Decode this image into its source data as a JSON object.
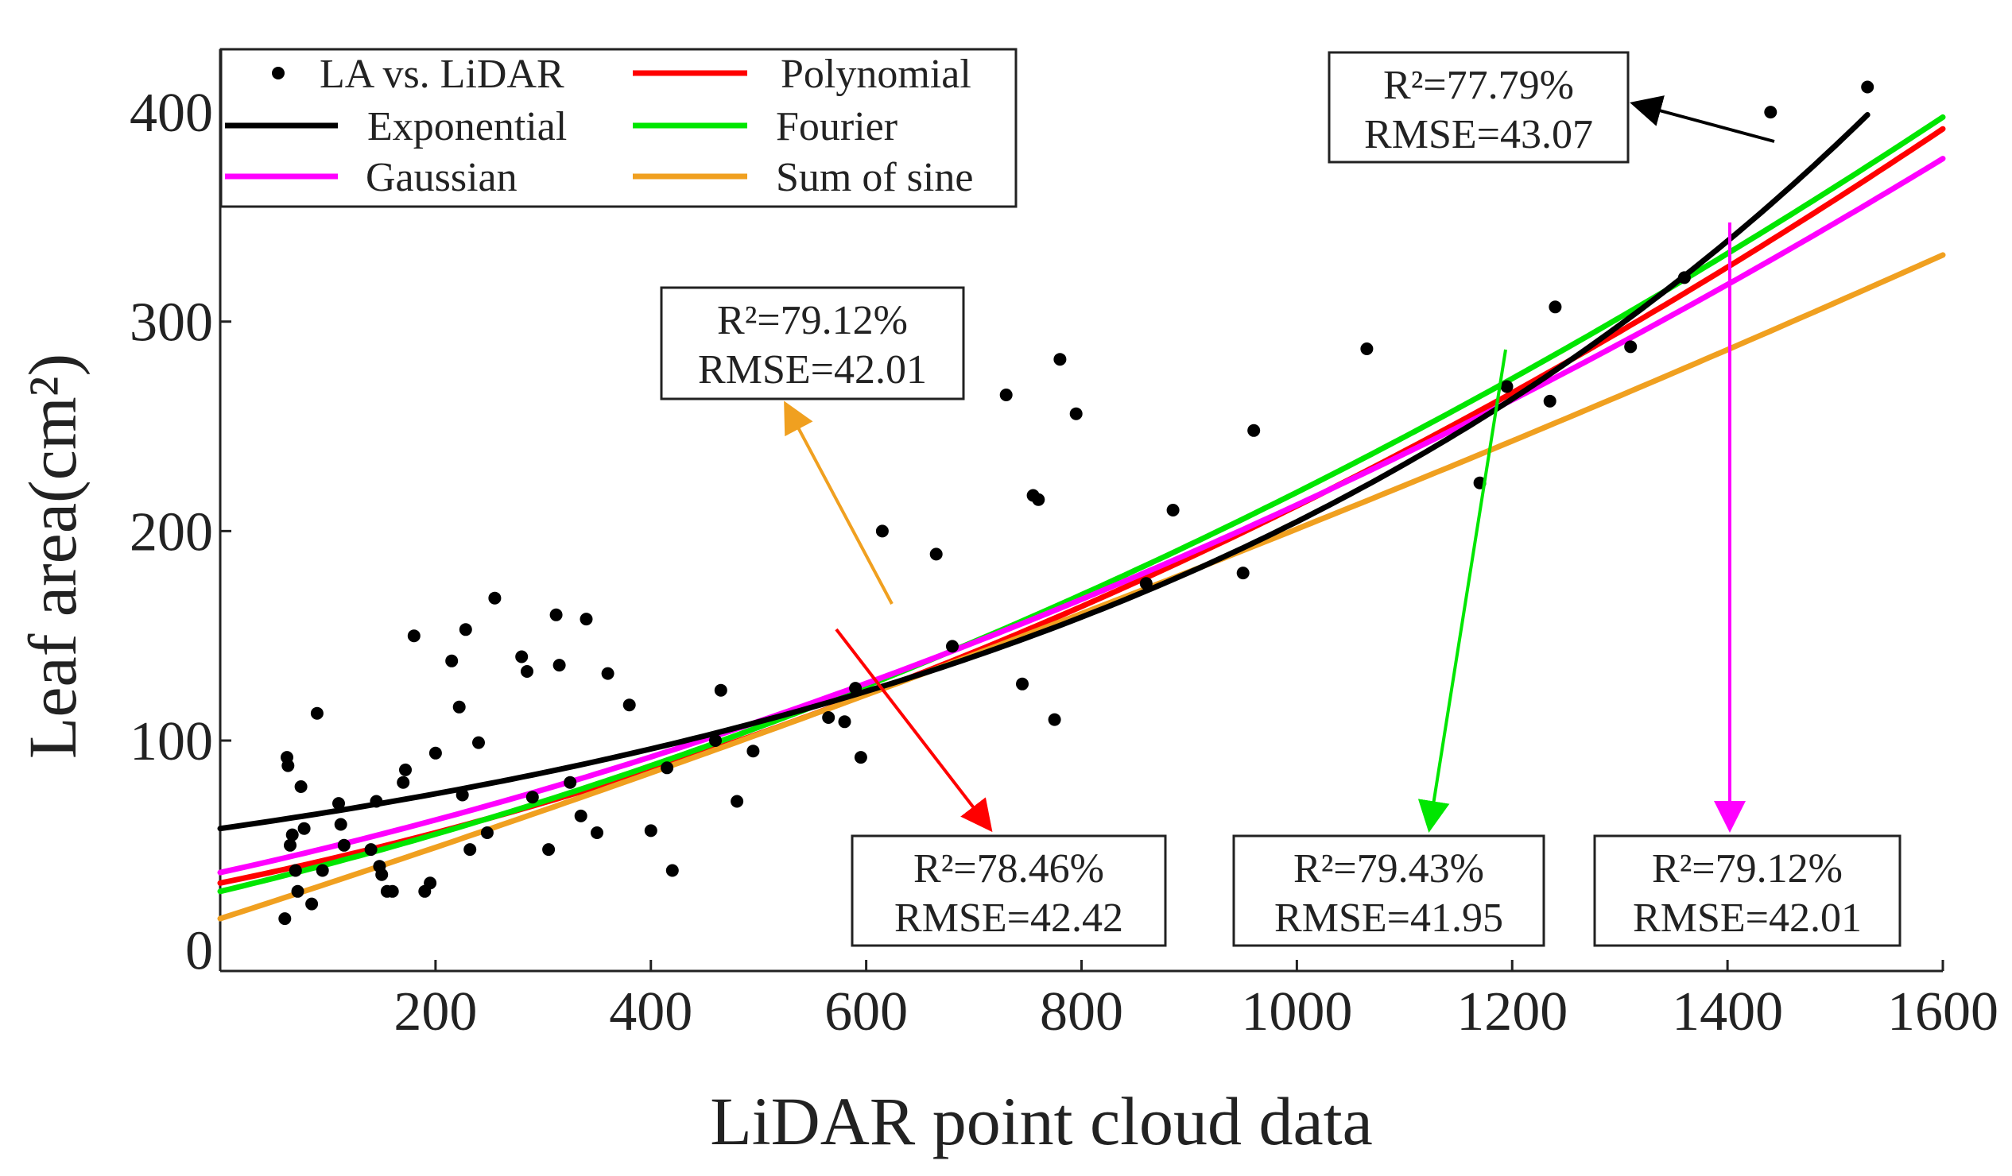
{
  "chart_data": {
    "type": "scatter",
    "xlabel": "LiDAR point cloud data",
    "ylabel": "Leaf area(cm²)",
    "xlim": [
      0,
      1600
    ],
    "ylim": [
      -10,
      430
    ],
    "x_ticks": [
      200,
      400,
      600,
      800,
      1000,
      1200,
      1400,
      1600
    ],
    "y_ticks": [
      0,
      100,
      200,
      300,
      400
    ],
    "grid": false,
    "legend_position": "top-left",
    "points": {
      "name": "LA vs. LiDAR",
      "x": [
        60,
        62,
        63,
        65,
        67,
        70,
        72,
        75,
        78,
        85,
        90,
        95,
        110,
        112,
        115,
        140,
        145,
        148,
        150,
        155,
        160,
        170,
        172,
        180,
        190,
        195,
        200,
        215,
        222,
        225,
        228,
        232,
        240,
        248,
        255,
        280,
        285,
        290,
        305,
        312,
        315,
        325,
        335,
        340,
        350,
        360,
        380,
        400,
        415,
        420,
        460,
        465,
        480,
        495,
        565,
        580,
        590,
        595,
        615,
        665,
        680,
        730,
        745,
        755,
        760,
        775,
        780,
        795,
        860,
        885,
        950,
        960,
        1065,
        1170,
        1195,
        1235,
        1240,
        1310,
        1360,
        1440,
        1530
      ],
      "y": [
        15,
        92,
        88,
        50,
        55,
        38,
        28,
        78,
        58,
        22,
        113,
        38,
        70,
        60,
        50,
        48,
        71,
        40,
        36,
        28,
        28,
        80,
        86,
        150,
        28,
        32,
        94,
        138,
        116,
        74,
        153,
        48,
        99,
        56,
        168,
        140,
        133,
        73,
        48,
        160,
        136,
        80,
        64,
        158,
        56,
        132,
        117,
        57,
        87,
        38,
        100,
        124,
        71,
        95,
        111,
        109,
        125,
        92,
        200,
        189,
        145,
        265,
        127,
        217,
        215,
        110,
        282,
        256,
        175,
        210,
        180,
        248,
        287,
        223,
        269,
        262,
        307,
        288,
        321,
        400,
        412
      ]
    },
    "series": [
      {
        "name": "Polynomial",
        "color": "#ff0000",
        "a": 7.5e-05,
        "b": 0.105,
        "c": 32
      },
      {
        "name": "Exponential",
        "color": "#000000",
        "a": 58,
        "k": 0.00126
      },
      {
        "name": "Fourier",
        "color": "#00e600",
        "a": 6.75e-05,
        "b": 0.123,
        "c": 28
      },
      {
        "name": "Gaussian",
        "color": "#ff00ff",
        "a": 6.25e-05,
        "b": 0.113,
        "c": 37
      },
      {
        "name": "Sum of sine",
        "color": "#f0a020",
        "a": 2e-05,
        "b": 0.166,
        "c": 15
      }
    ],
    "annotations": [
      {
        "name": "exponential",
        "r2": "R²=77.79%",
        "rmse": "RMSE=43.07",
        "color": "#000000"
      },
      {
        "name": "sum-of-sine",
        "r2": "R²=79.12%",
        "rmse": "RMSE=42.01",
        "color": "#f0a020"
      },
      {
        "name": "polynomial",
        "r2": "R²=78.46%",
        "rmse": "RMSE=42.42",
        "color": "#ff0000"
      },
      {
        "name": "fourier",
        "r2": "R²=79.43%",
        "rmse": "RMSE=41.95",
        "color": "#00e600"
      },
      {
        "name": "gaussian",
        "r2": "R²=79.12%",
        "rmse": "RMSE=42.01",
        "color": "#ff00ff"
      }
    ]
  }
}
